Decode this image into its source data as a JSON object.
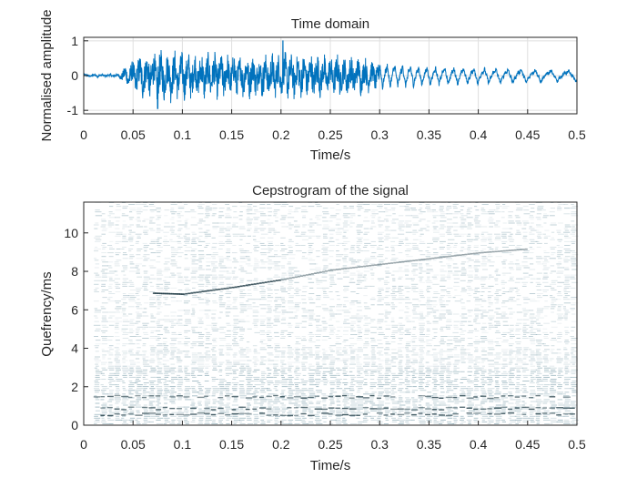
{
  "chart_data": [
    {
      "type": "line",
      "title": "Time domain",
      "xlabel": "Time/s",
      "ylabel": "Normalised amplitude",
      "xlim": [
        0,
        0.5
      ],
      "ylim": [
        -1.1,
        1.1
      ],
      "xticks": [
        "0",
        "0.05",
        "0.1",
        "0.15",
        "0.2",
        "0.25",
        "0.3",
        "0.35",
        "0.4",
        "0.45",
        "0.5"
      ],
      "yticks": [
        "-1",
        "0",
        "1"
      ],
      "series": [
        {
          "color": "#0072bd",
          "envelope": {
            "x": [
              0.0,
              0.02,
              0.035,
              0.045,
              0.06,
              0.08,
              0.1,
              0.15,
              0.2,
              0.25,
              0.28,
              0.3,
              0.35,
              0.4,
              0.45,
              0.5
            ],
            "amplitude": [
              0.05,
              0.05,
              0.06,
              0.45,
              0.75,
              0.85,
              0.8,
              0.72,
              0.78,
              0.72,
              0.65,
              0.45,
              0.32,
              0.28,
              0.25,
              0.2
            ]
          },
          "peaks": [
            {
              "x": 0.202,
              "y": 1.0
            },
            {
              "x": 0.075,
              "y": -0.95
            }
          ]
        }
      ],
      "grid": true
    },
    {
      "type": "heatmap",
      "title": "Cepstrogram of the signal",
      "xlabel": "Time/s",
      "ylabel": "Quefrency/ms",
      "xlim": [
        0.01,
        0.5
      ],
      "ylim": [
        0,
        11.6
      ],
      "xticks": [
        "0",
        "0.05",
        "0.1",
        "0.15",
        "0.2",
        "0.25",
        "0.3",
        "0.35",
        "0.4",
        "0.45",
        "0.5"
      ],
      "yticks": [
        "0",
        "2",
        "4",
        "6",
        "8",
        "10"
      ],
      "colormap": "bone (inverted, white background)",
      "pitch_track": {
        "x": [
          0.07,
          0.1,
          0.15,
          0.2,
          0.25,
          0.3,
          0.35,
          0.4,
          0.45
        ],
        "y": [
          6.9,
          6.85,
          7.2,
          7.6,
          8.1,
          8.4,
          8.7,
          9.0,
          9.2
        ]
      },
      "strong_bands": [
        0.6,
        0.9,
        1.5
      ]
    }
  ]
}
